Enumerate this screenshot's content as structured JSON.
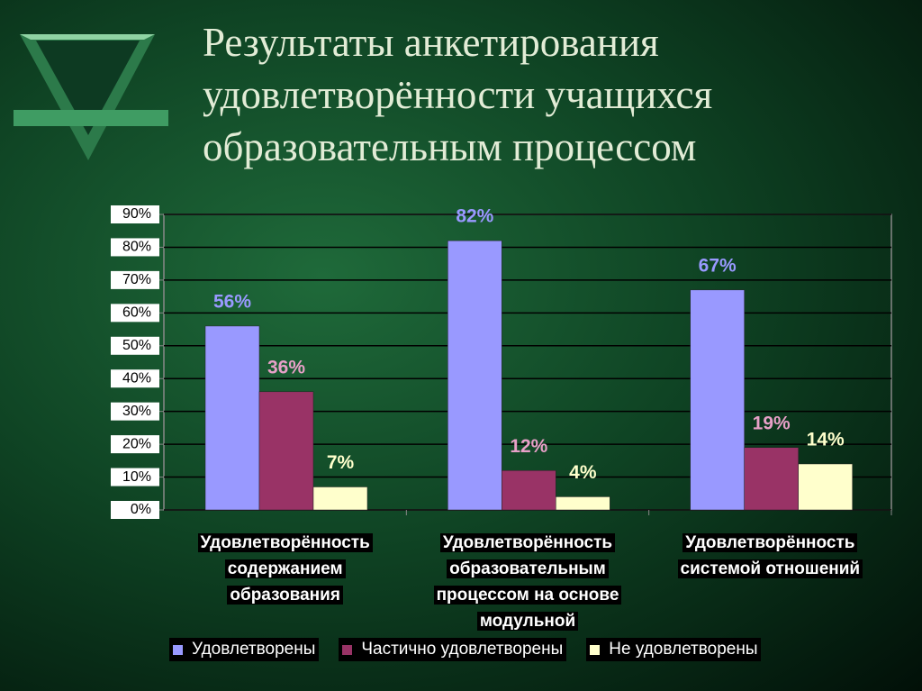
{
  "chart_data": {
    "type": "bar",
    "title": "Результаты анкетирования удовлетворённости учащихся образовательным процессом",
    "categories": [
      "Удовлетворённость содержанием образования",
      "Удовлетворённость образовательным процессом на основе модульной",
      "Удовлетворённость системой отношений"
    ],
    "series": [
      {
        "name": "Удовлетворены",
        "color": "#9999ff",
        "label_color": "#9999ff",
        "values": [
          56,
          82,
          67
        ],
        "value_labels": [
          "56%",
          "82%",
          "67%"
        ]
      },
      {
        "name": "Частично удовлетворены",
        "color": "#993366",
        "label_color": "#e8a0c8",
        "values": [
          36,
          12,
          19
        ],
        "value_labels": [
          "36%",
          "12%",
          "19%"
        ]
      },
      {
        "name": "Не удовлетворены",
        "color": "#ffffcc",
        "label_color": "#ffffcc",
        "values": [
          7,
          4,
          14
        ],
        "value_labels": [
          "7%",
          "4%",
          "14%"
        ]
      }
    ],
    "ylim": [
      0,
      90
    ],
    "yticks": [
      {
        "value": 0,
        "label": "0%"
      },
      {
        "value": 10,
        "label": "10%"
      },
      {
        "value": 20,
        "label": "20%"
      },
      {
        "value": 30,
        "label": "30%"
      },
      {
        "value": 40,
        "label": "40%"
      },
      {
        "value": 50,
        "label": "50%"
      },
      {
        "value": 60,
        "label": "60%"
      },
      {
        "value": 70,
        "label": "70%"
      },
      {
        "value": 80,
        "label": "80%"
      },
      {
        "value": 90,
        "label": "90%"
      }
    ],
    "grid": true,
    "legend": "bottom"
  }
}
